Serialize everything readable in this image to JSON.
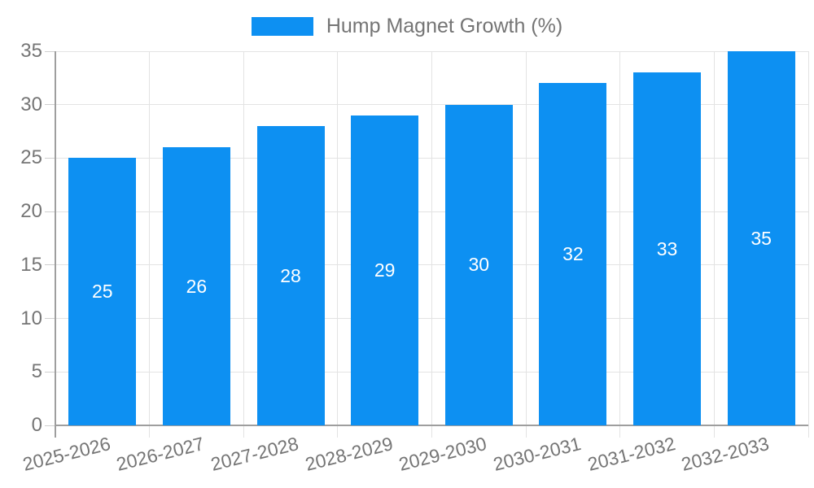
{
  "legend": {
    "label": "Hump Magnet Growth (%)",
    "swatch_color": "#0d90f2"
  },
  "chart_data": {
    "type": "bar",
    "title": "Hump Magnet Growth (%)",
    "series_name": "Hump Magnet Growth (%)",
    "categories": [
      "2025-2026",
      "2026-2027",
      "2027-2028",
      "2028-2029",
      "2029-2030",
      "2030-2031",
      "2031-2032",
      "2032-2033"
    ],
    "values": [
      25,
      26,
      28,
      29,
      30,
      32,
      33,
      35
    ],
    "value_labels": [
      "25",
      "26",
      "28",
      "29",
      "30",
      "32",
      "33",
      "35"
    ],
    "xlabel": "",
    "ylabel": "",
    "ylim": [
      0,
      35
    ],
    "y_ticks": [
      0,
      5,
      10,
      15,
      20,
      25,
      30,
      35
    ],
    "grid": true,
    "legend_position": "top-center",
    "bar_color": "#0d90f2",
    "value_label_color": "#ffffff",
    "axis_text_color": "#757575"
  }
}
